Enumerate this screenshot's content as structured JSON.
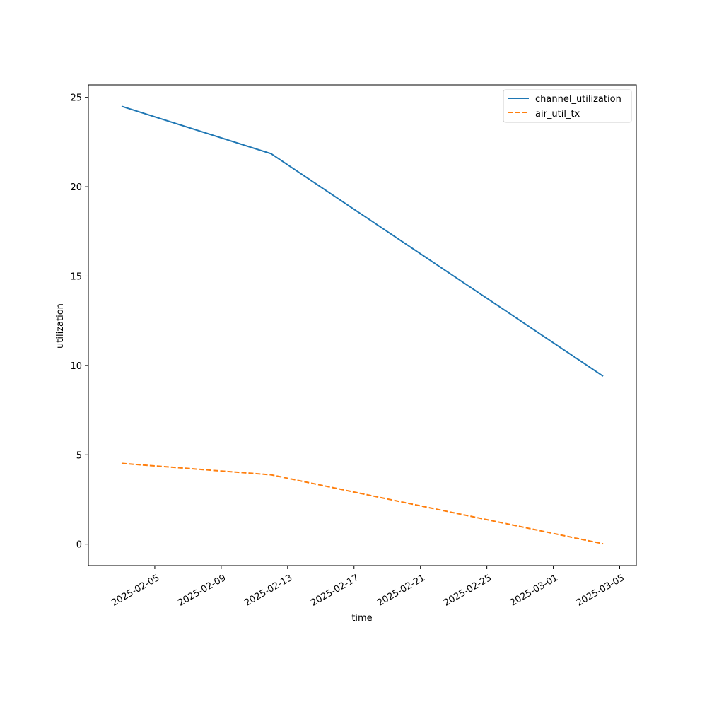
{
  "chart_data": {
    "type": "line",
    "title": "",
    "xlabel": "time",
    "ylabel": "utilization",
    "x": [
      "2025-02-03",
      "2025-02-12",
      "2025-03-04"
    ],
    "series": [
      {
        "name": "channel_utilization",
        "values": [
          24.5,
          21.85,
          9.4
        ],
        "color": "#1f77b4",
        "line_style": "solid"
      },
      {
        "name": "air_util_tx",
        "values": [
          4.52,
          3.88,
          0.02
        ],
        "color": "#ff7f0e",
        "line_style": "dashed"
      }
    ],
    "xlim": [
      "2025-02-01",
      "2025-03-06"
    ],
    "ylim": [
      -1.2,
      25.7
    ],
    "x_ticks": [
      "2025-02-05",
      "2025-02-09",
      "2025-02-13",
      "2025-02-17",
      "2025-02-21",
      "2025-02-25",
      "2025-03-01",
      "2025-03-05"
    ],
    "y_ticks": [
      0,
      5,
      10,
      15,
      20,
      25
    ],
    "grid": false,
    "legend_position": "top-right"
  }
}
